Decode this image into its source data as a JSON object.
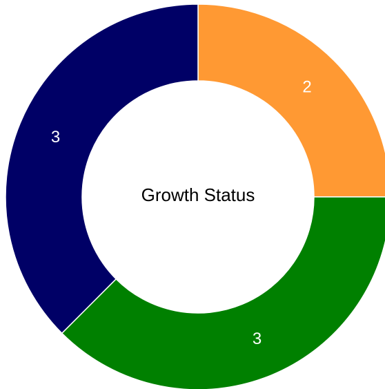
{
  "chart_data": {
    "type": "pie",
    "title": "Growth Status",
    "categories": [
      null,
      null,
      null
    ],
    "values": [
      2,
      3,
      3
    ],
    "colors": [
      "#ff9933",
      "#008000",
      "#000066"
    ],
    "donut": true
  }
}
